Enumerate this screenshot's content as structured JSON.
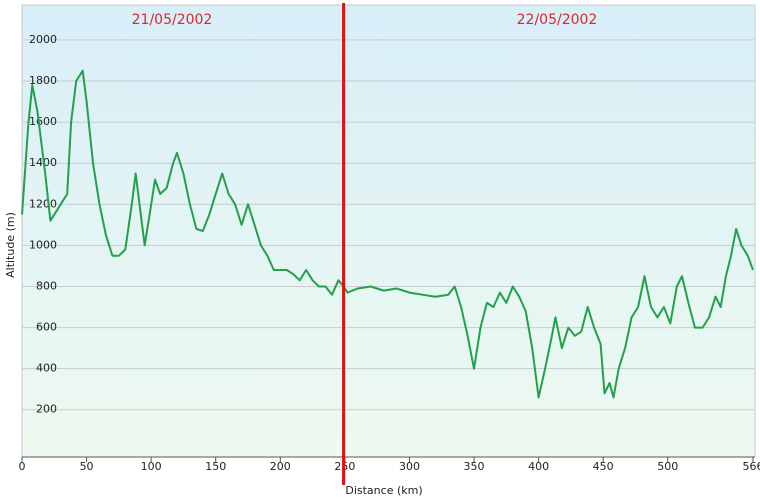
{
  "chart_data": {
    "type": "line",
    "x_label": "Distance  (km)",
    "y_label": "Altitude (m)",
    "day_labels": [
      "21/05/2002",
      "22/05/2002"
    ],
    "day_boundary": 249,
    "x": [
      0,
      5,
      8,
      12,
      18,
      22,
      25,
      30,
      35,
      38,
      42,
      47,
      50,
      55,
      60,
      65,
      70,
      75,
      80,
      85,
      88,
      92,
      95,
      100,
      103,
      107,
      112,
      117,
      120,
      125,
      130,
      135,
      140,
      145,
      150,
      155,
      160,
      165,
      170,
      175,
      180,
      185,
      190,
      195,
      200,
      205,
      210,
      215,
      220,
      225,
      230,
      235,
      240,
      245,
      249,
      252,
      260,
      270,
      280,
      290,
      300,
      310,
      320,
      330,
      335,
      340,
      345,
      350,
      355,
      360,
      365,
      370,
      375,
      380,
      385,
      390,
      395,
      400,
      405,
      410,
      413,
      418,
      423,
      428,
      433,
      438,
      443,
      448,
      451,
      455,
      458,
      462,
      467,
      472,
      477,
      482,
      487,
      492,
      497,
      502,
      507,
      511,
      516,
      521,
      527,
      532,
      537,
      541,
      545,
      549,
      553,
      557,
      562,
      566
    ],
    "series": [
      {
        "name": "Altitude",
        "color": "#22a04b",
        "values": [
          1150,
          1600,
          1780,
          1650,
          1350,
          1120,
          1150,
          1200,
          1250,
          1600,
          1800,
          1850,
          1700,
          1400,
          1200,
          1050,
          950,
          950,
          980,
          1200,
          1350,
          1150,
          1000,
          1200,
          1320,
          1250,
          1280,
          1400,
          1450,
          1350,
          1200,
          1080,
          1070,
          1150,
          1250,
          1350,
          1250,
          1200,
          1100,
          1200,
          1100,
          1000,
          950,
          880,
          880,
          880,
          860,
          830,
          880,
          830,
          800,
          800,
          760,
          830,
          800,
          770,
          790,
          800,
          780,
          790,
          770,
          760,
          750,
          760,
          800,
          700,
          560,
          400,
          600,
          720,
          700,
          770,
          720,
          800,
          750,
          680,
          500,
          260,
          400,
          550,
          650,
          500,
          600,
          560,
          580,
          700,
          600,
          520,
          280,
          330,
          260,
          400,
          500,
          650,
          700,
          850,
          700,
          650,
          700,
          620,
          800,
          850,
          720,
          600,
          600,
          650,
          750,
          700,
          850,
          950,
          1080,
          1000,
          950,
          880
        ]
      }
    ],
    "xlim": [
      0,
      566
    ],
    "ylim": [
      -30,
      2170
    ],
    "xticks": [
      0,
      50,
      100,
      150,
      200,
      250,
      300,
      350,
      400,
      450,
      500,
      566
    ],
    "yticks": [
      200,
      400,
      600,
      800,
      1000,
      1200,
      1400,
      1600,
      1800,
      2000
    ],
    "grid": true
  }
}
